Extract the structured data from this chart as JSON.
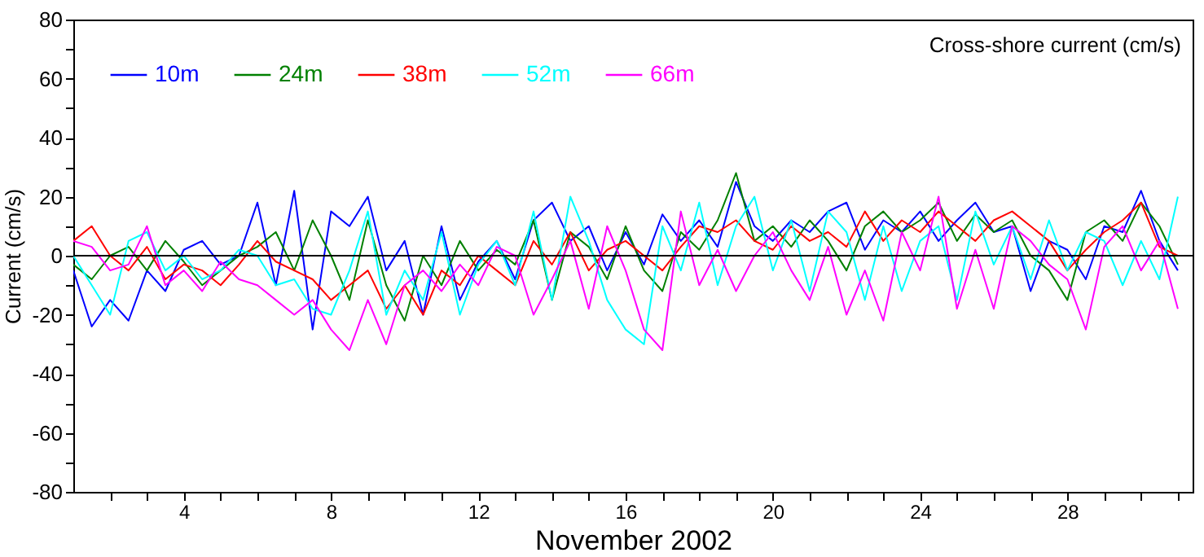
{
  "chart_data": {
    "type": "line",
    "title": "Cross-shore current (cm/s)",
    "xlabel": "November 2002",
    "ylabel": "Current (cm/s)",
    "x": [
      1,
      1.5,
      2,
      2.5,
      3,
      3.5,
      4,
      4.5,
      5,
      5.5,
      6,
      6.5,
      7,
      7.5,
      8,
      8.5,
      9,
      9.5,
      10,
      10.5,
      11,
      11.5,
      12,
      12.5,
      13,
      13.5,
      14,
      14.5,
      15,
      15.5,
      16,
      16.5,
      17,
      17.5,
      18,
      18.5,
      19,
      19.5,
      20,
      20.5,
      21,
      21.5,
      22,
      22.5,
      23,
      23.5,
      24,
      24.5,
      25,
      25.5,
      26,
      26.5,
      27,
      27.5,
      28,
      28.5,
      29,
      29.5,
      30,
      30.5,
      31
    ],
    "series": [
      {
        "name": "10m",
        "color": "#0000ff",
        "values": [
          -5,
          -24,
          -15,
          -22,
          -5,
          -12,
          2,
          5,
          -3,
          0,
          18,
          -10,
          22,
          -25,
          15,
          10,
          20,
          -5,
          5,
          -20,
          10,
          -15,
          -2,
          5,
          -8,
          12,
          18,
          5,
          10,
          -5,
          8,
          -3,
          14,
          5,
          12,
          3,
          25,
          10,
          5,
          12,
          8,
          15,
          18,
          2,
          12,
          8,
          15,
          5,
          12,
          18,
          8,
          10,
          -12,
          5,
          2,
          -8,
          10,
          8,
          22,
          5,
          -5
        ]
      },
      {
        "name": "24m",
        "color": "#008000",
        "values": [
          -3,
          -8,
          0,
          3,
          -5,
          5,
          -2,
          -10,
          -5,
          0,
          3,
          8,
          -5,
          12,
          0,
          -15,
          12,
          -10,
          -22,
          0,
          -10,
          5,
          -5,
          2,
          -3,
          12,
          -15,
          8,
          3,
          -8,
          10,
          -5,
          -12,
          8,
          2,
          12,
          28,
          5,
          10,
          3,
          12,
          5,
          -5,
          10,
          15,
          8,
          12,
          18,
          5,
          14,
          8,
          12,
          0,
          -5,
          -15,
          8,
          12,
          5,
          18,
          10,
          -3
        ]
      },
      {
        "name": "38m",
        "color": "#ff0000",
        "values": [
          5,
          10,
          0,
          -5,
          3,
          -8,
          -3,
          -5,
          -10,
          -3,
          5,
          -2,
          -5,
          -8,
          -15,
          -10,
          -5,
          -18,
          -10,
          -20,
          -5,
          -10,
          0,
          -5,
          -10,
          5,
          -3,
          8,
          -5,
          2,
          5,
          0,
          -5,
          3,
          10,
          8,
          12,
          5,
          2,
          10,
          5,
          8,
          3,
          15,
          5,
          12,
          8,
          15,
          10,
          5,
          12,
          15,
          10,
          5,
          -5,
          2,
          8,
          12,
          18,
          3,
          0
        ]
      },
      {
        "name": "52m",
        "color": "#00ffff",
        "values": [
          0,
          -10,
          -20,
          5,
          8,
          -5,
          0,
          -8,
          -5,
          2,
          0,
          -10,
          -8,
          -18,
          -20,
          -5,
          15,
          -20,
          -5,
          -15,
          8,
          -20,
          -3,
          5,
          -10,
          15,
          -15,
          20,
          5,
          -15,
          -25,
          -30,
          10,
          -5,
          18,
          -10,
          10,
          20,
          -5,
          12,
          -12,
          15,
          8,
          -15,
          10,
          -12,
          5,
          10,
          -15,
          15,
          -3,
          10,
          -8,
          12,
          -5,
          8,
          5,
          -10,
          5,
          -8,
          20
        ]
      },
      {
        "name": "66m",
        "color": "#ff00ff",
        "values": [
          5,
          3,
          -5,
          -3,
          10,
          -10,
          -5,
          -12,
          -2,
          -8,
          -10,
          -15,
          -20,
          -15,
          -25,
          -32,
          -15,
          -30,
          -10,
          -5,
          -12,
          -3,
          -10,
          3,
          0,
          -20,
          -8,
          5,
          -18,
          10,
          -5,
          -25,
          -32,
          15,
          -10,
          2,
          -12,
          0,
          8,
          -5,
          -15,
          3,
          -20,
          -5,
          -22,
          8,
          -5,
          20,
          -18,
          2,
          -18,
          10,
          5,
          -3,
          -8,
          -25,
          3,
          10,
          -5,
          5,
          -18
        ]
      }
    ],
    "xlim": [
      1,
      31.4
    ],
    "xticks": [
      {
        "value": 2,
        "label": null
      },
      {
        "value": 3,
        "label": null
      },
      4,
      {
        "value": 5,
        "label": null
      },
      {
        "value": 6,
        "label": null
      },
      {
        "value": 7,
        "label": null
      },
      8,
      {
        "value": 9,
        "label": null
      },
      {
        "value": 10,
        "label": null
      },
      {
        "value": 11,
        "label": null
      },
      12,
      {
        "value": 13,
        "label": null
      },
      {
        "value": 14,
        "label": null
      },
      {
        "value": 15,
        "label": null
      },
      16,
      {
        "value": 17,
        "label": null
      },
      {
        "value": 18,
        "label": null
      },
      {
        "value": 19,
        "label": null
      },
      20,
      {
        "value": 21,
        "label": null
      },
      {
        "value": 22,
        "label": null
      },
      {
        "value": 23,
        "label": null
      },
      24,
      {
        "value": 25,
        "label": null
      },
      {
        "value": 26,
        "label": null
      },
      {
        "value": 27,
        "label": null
      },
      28,
      {
        "value": 29,
        "label": null
      },
      {
        "value": 30,
        "label": null
      },
      {
        "value": 31,
        "label": null
      }
    ],
    "ylim": [
      -80,
      80
    ],
    "yticks": [
      -80,
      {
        "value": -70,
        "label": null
      },
      -60,
      {
        "value": -50,
        "label": null
      },
      -40,
      {
        "value": -30,
        "label": null
      },
      -20,
      {
        "value": -10,
        "label": null
      },
      0,
      {
        "value": 10,
        "label": null
      },
      20,
      {
        "value": 30,
        "label": null
      },
      40,
      {
        "value": 50,
        "label": null
      },
      60,
      {
        "value": 70,
        "label": null
      },
      80
    ],
    "ref_lines": [
      {
        "axis": "y",
        "value": 0,
        "color": "#000000"
      }
    ],
    "grid": false,
    "legend": "top left",
    "marker": "none",
    "line_style": "solid"
  }
}
